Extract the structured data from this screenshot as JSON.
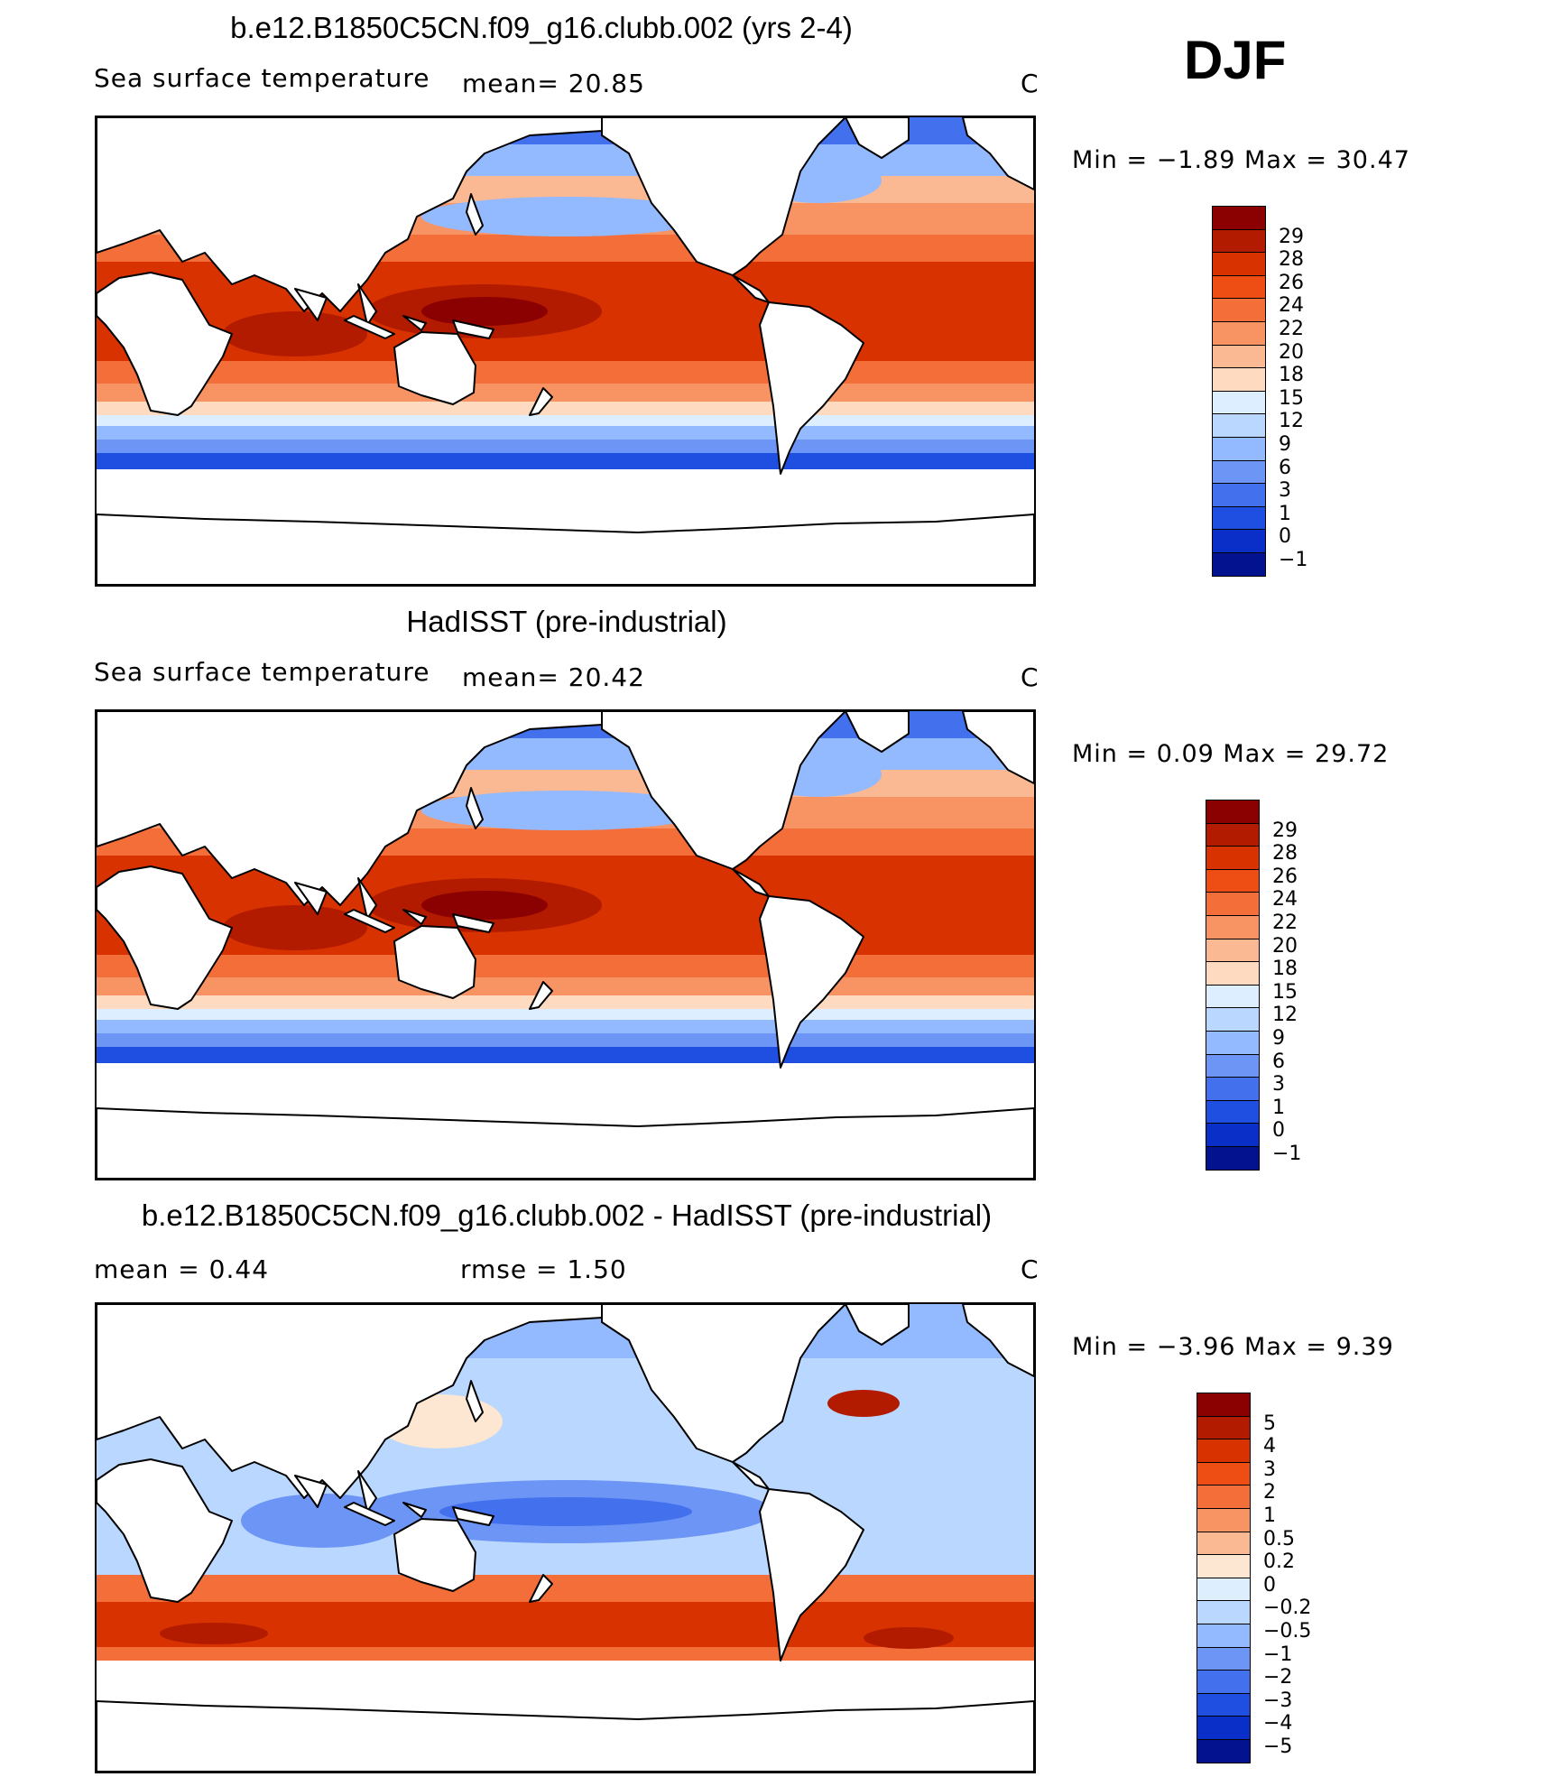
{
  "season": "DJF",
  "panels": [
    {
      "id": "model",
      "title": "b.e12.B1850C5CN.f09_g16.clubb.002 (yrs 2-4)",
      "subtitle_left": "Sea surface temperature",
      "subtitle_mid": "mean=   20.85",
      "subtitle_right": "C",
      "minmax": "Min =   −1.89  Max =   30.47",
      "colorbar": {
        "colors": [
          "#8b0000",
          "#b31b00",
          "#d83200",
          "#ee4d13",
          "#f46e3a",
          "#f89464",
          "#fbb993",
          "#fddac0",
          "#dceeff",
          "#b9d7ff",
          "#93b9ff",
          "#6c95f5",
          "#4371ee",
          "#1f4fe0",
          "#0a2ec8",
          "#03128f"
        ],
        "labels": [
          "29",
          "28",
          "26",
          "24",
          "22",
          "20",
          "18",
          "15",
          "12",
          "9",
          "6",
          "3",
          "1",
          "0",
          "−1"
        ]
      }
    },
    {
      "id": "obs",
      "title": "HadISST (pre-industrial)",
      "subtitle_left": "Sea surface temperature",
      "subtitle_mid": "mean=   20.42",
      "subtitle_right": "C",
      "minmax": "Min =    0.09  Max =   29.72",
      "colorbar": {
        "colors": [
          "#8b0000",
          "#b31b00",
          "#d83200",
          "#ee4d13",
          "#f46e3a",
          "#f89464",
          "#fbb993",
          "#fddac0",
          "#dceeff",
          "#b9d7ff",
          "#93b9ff",
          "#6c95f5",
          "#4371ee",
          "#1f4fe0",
          "#0a2ec8",
          "#03128f"
        ],
        "labels": [
          "29",
          "28",
          "26",
          "24",
          "22",
          "20",
          "18",
          "15",
          "12",
          "9",
          "6",
          "3",
          "1",
          "0",
          "−1"
        ]
      }
    },
    {
      "id": "diff",
      "title": "b.e12.B1850C5CN.f09_g16.clubb.002 - HadISST (pre-industrial)",
      "subtitle_left": "mean =     0.44",
      "subtitle_mid": "rmse =     1.50",
      "subtitle_right": "C",
      "minmax": "Min =   −3.96  Max =     9.39",
      "colorbar": {
        "colors": [
          "#8b0000",
          "#b31b00",
          "#d83200",
          "#ee4d13",
          "#f46e3a",
          "#f89464",
          "#fbb993",
          "#fde6d2",
          "#ddeeff",
          "#b9d7ff",
          "#93b9ff",
          "#6c95f5",
          "#4371ee",
          "#1f4fe0",
          "#0a2ec8",
          "#03128f"
        ],
        "labels": [
          "5",
          "4",
          "3",
          "2",
          "1",
          "0.5",
          "0.2",
          "0",
          "−0.2",
          "−0.5",
          "−1",
          "−2",
          "−3",
          "−4",
          "−5"
        ]
      }
    }
  ]
}
